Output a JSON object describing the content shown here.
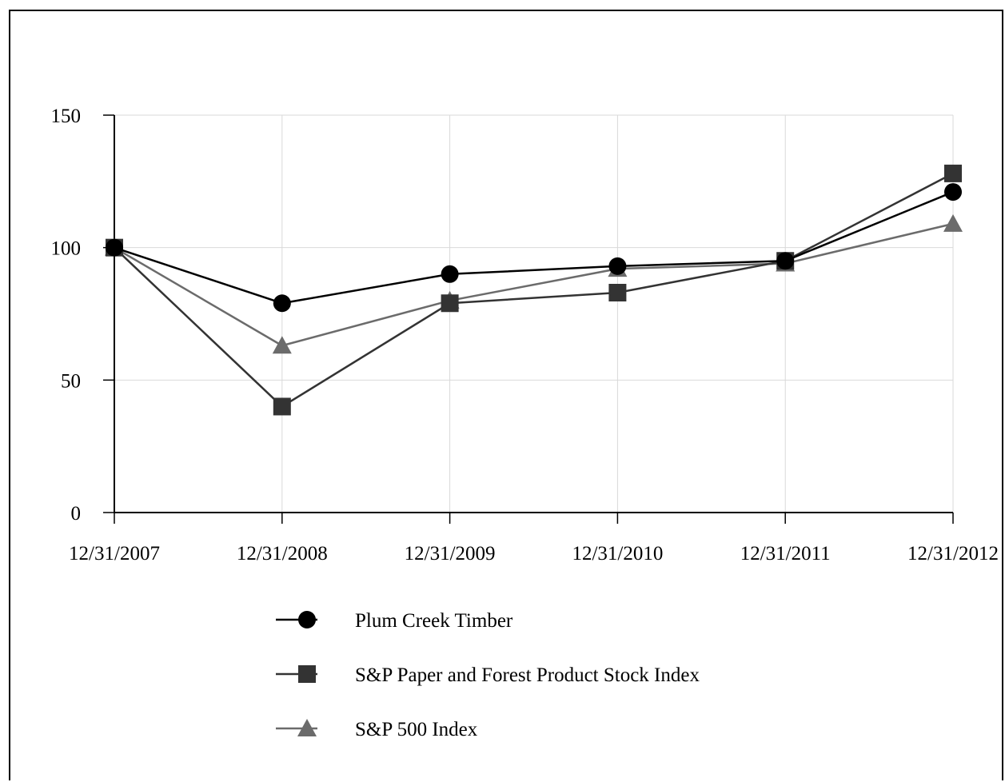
{
  "chart_data": {
    "type": "line",
    "title": "",
    "xlabel": "",
    "ylabel": "",
    "x": [
      "12/31/2007",
      "12/31/2008",
      "12/31/2009",
      "12/31/2010",
      "12/31/2011",
      "12/31/2012"
    ],
    "ylim": [
      0,
      150
    ],
    "yticks": [
      0,
      50,
      100,
      150
    ],
    "grid": true,
    "legend_position": "bottom",
    "series": [
      {
        "name": "Plum Creek Timber",
        "marker": "circle",
        "color": "#000000",
        "values": [
          100,
          79,
          90,
          93,
          95,
          121
        ]
      },
      {
        "name": "S&P Paper and Forest Product Stock Index",
        "marker": "square",
        "color": "#333333",
        "values": [
          100,
          40,
          79,
          83,
          95,
          128
        ]
      },
      {
        "name": "S&P 500 Index",
        "marker": "triangle",
        "color": "#6b6b6b",
        "values": [
          100,
          63,
          80,
          92,
          94,
          109
        ]
      }
    ]
  }
}
